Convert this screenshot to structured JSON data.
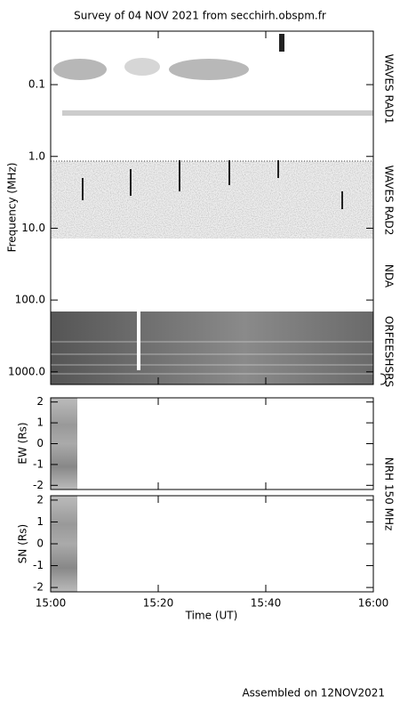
{
  "title": "Survey of 04 NOV 2021 from secchirh.obspm.fr",
  "footer": "Assembled on 12NOV2021",
  "frequency_axis": {
    "label": "Frequency (MHz)",
    "log": true,
    "inverted": true,
    "ylim": [
      0.018,
      1500
    ],
    "yticks": [
      {
        "value": 0.1,
        "label": "0.1"
      },
      {
        "value": 1,
        "label": "1.0"
      },
      {
        "value": 10,
        "label": "10.0"
      },
      {
        "value": 100,
        "label": "100.0"
      },
      {
        "value": 1000,
        "label": "1000.0"
      }
    ]
  },
  "instruments": [
    "WAVES RAD1",
    "WAVES RAD2",
    "NDA",
    "ORFEESHSRS"
  ],
  "ew_axis": {
    "label": "EW (Rs)",
    "ylim": [
      -2.2,
      2.2
    ],
    "yticks": [
      -2,
      -1,
      0,
      1,
      2
    ]
  },
  "sn_axis": {
    "label": "SN (Rs)",
    "ylim": [
      -2.2,
      2.2
    ],
    "yticks": [
      -2,
      -1,
      0,
      1,
      2
    ]
  },
  "nrh_label": "NRH 150 MHz",
  "time_axis": {
    "label": "Time (UT)",
    "xlim": [
      0,
      60
    ],
    "xticks": [
      {
        "value": 0,
        "label": "15:00"
      },
      {
        "value": 20,
        "label": "15:20"
      },
      {
        "value": 40,
        "label": "15:40"
      },
      {
        "value": 60,
        "label": "16:00"
      }
    ]
  }
}
